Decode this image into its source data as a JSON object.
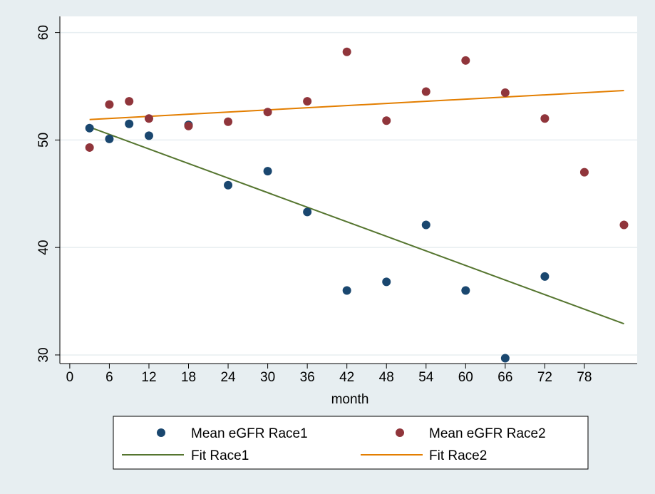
{
  "chart_data": {
    "type": "scatter",
    "xlabel": "month",
    "ylabel": "",
    "xlim": [
      -1.5,
      86
    ],
    "ylim": [
      29.2,
      61.5
    ],
    "xticks": [
      0,
      6,
      12,
      18,
      24,
      30,
      36,
      42,
      48,
      54,
      60,
      66,
      72,
      78
    ],
    "yticks": [
      30,
      40,
      50,
      60
    ],
    "grid": true,
    "legend_position": "bottom",
    "colors": {
      "race1": "#1a476f",
      "race2": "#90353b",
      "fit1": "#55752f",
      "fit2": "#e37e00",
      "plot_bg": "#ffffff",
      "outer_bg": "#e7eef1",
      "grid": "#e7eef1"
    },
    "series": [
      {
        "name": "Mean eGFR Race1",
        "kind": "scatter",
        "color": "#1a476f",
        "x": [
          3,
          6,
          9,
          12,
          18,
          24,
          30,
          36,
          42,
          48,
          54,
          60,
          66,
          72
        ],
        "y": [
          51.1,
          50.1,
          51.5,
          50.4,
          51.4,
          45.8,
          47.1,
          43.3,
          36.0,
          36.8,
          42.1,
          36.0,
          29.7,
          37.3
        ]
      },
      {
        "name": "Mean eGFR Race2",
        "kind": "scatter",
        "color": "#90353b",
        "x": [
          3,
          6,
          9,
          12,
          18,
          24,
          30,
          36,
          42,
          48,
          54,
          60,
          66,
          72,
          78,
          84
        ],
        "y": [
          49.3,
          53.3,
          53.6,
          52.0,
          51.3,
          51.7,
          52.6,
          53.6,
          58.2,
          51.8,
          54.5,
          57.4,
          54.4,
          52.0,
          47.0,
          42.1
        ]
      },
      {
        "name": "Fit Race1",
        "kind": "line",
        "color": "#55752f",
        "x": [
          3,
          84
        ],
        "y": [
          51.2,
          32.9
        ]
      },
      {
        "name": "Fit Race2",
        "kind": "line",
        "color": "#e37e00",
        "x": [
          3,
          84
        ],
        "y": [
          51.9,
          54.6
        ]
      }
    ]
  }
}
